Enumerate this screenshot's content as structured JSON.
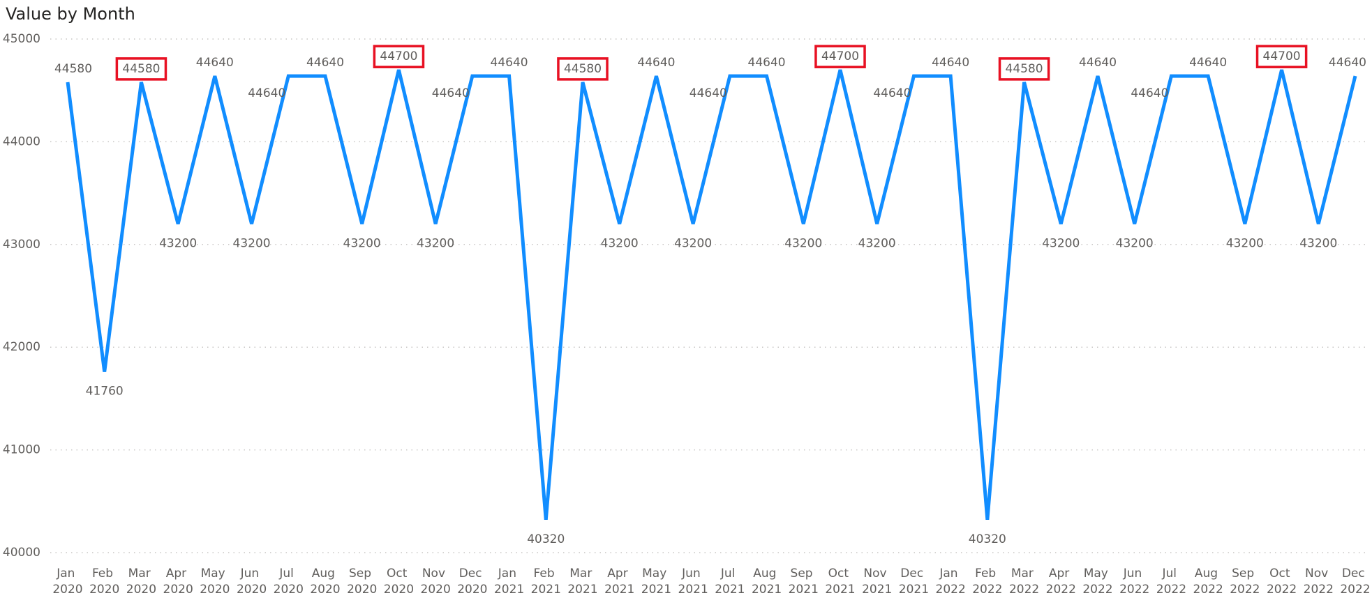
{
  "chart_data": {
    "type": "line",
    "title": "Value by Month",
    "categories": [
      "Jan 2020",
      "Feb 2020",
      "Mar 2020",
      "Apr 2020",
      "May 2020",
      "Jun 2020",
      "Jul 2020",
      "Aug 2020",
      "Sep 2020",
      "Oct 2020",
      "Nov 2020",
      "Dec 2020",
      "Jan 2021",
      "Feb 2021",
      "Mar 2021",
      "Apr 2021",
      "May 2021",
      "Jun 2021",
      "Jul 2021",
      "Aug 2021",
      "Sep 2021",
      "Oct 2021",
      "Nov 2021",
      "Dec 2021",
      "Jan 2022",
      "Feb 2022",
      "Mar 2022",
      "Apr 2022",
      "May 2022",
      "Jun 2022",
      "Jul 2022",
      "Aug 2022",
      "Sep 2022",
      "Oct 2022",
      "Nov 2022",
      "Dec 2022"
    ],
    "values": [
      44580,
      41760,
      44580,
      43200,
      44640,
      43200,
      44640,
      44640,
      43200,
      44700,
      43200,
      44640,
      44640,
      40320,
      44580,
      43200,
      44640,
      43200,
      44640,
      44640,
      43200,
      44700,
      43200,
      44640,
      44640,
      40320,
      44580,
      43200,
      44640,
      43200,
      44640,
      44640,
      43200,
      44700,
      43200,
      44640
    ],
    "color": "#118dff",
    "ylim": [
      40000,
      45000
    ],
    "yticks": [
      40000,
      41000,
      42000,
      43000,
      44000,
      45000
    ],
    "grid": true,
    "highlight": {
      "color": "#e81123",
      "indices": [
        2,
        9,
        14,
        21,
        26,
        33
      ]
    }
  }
}
